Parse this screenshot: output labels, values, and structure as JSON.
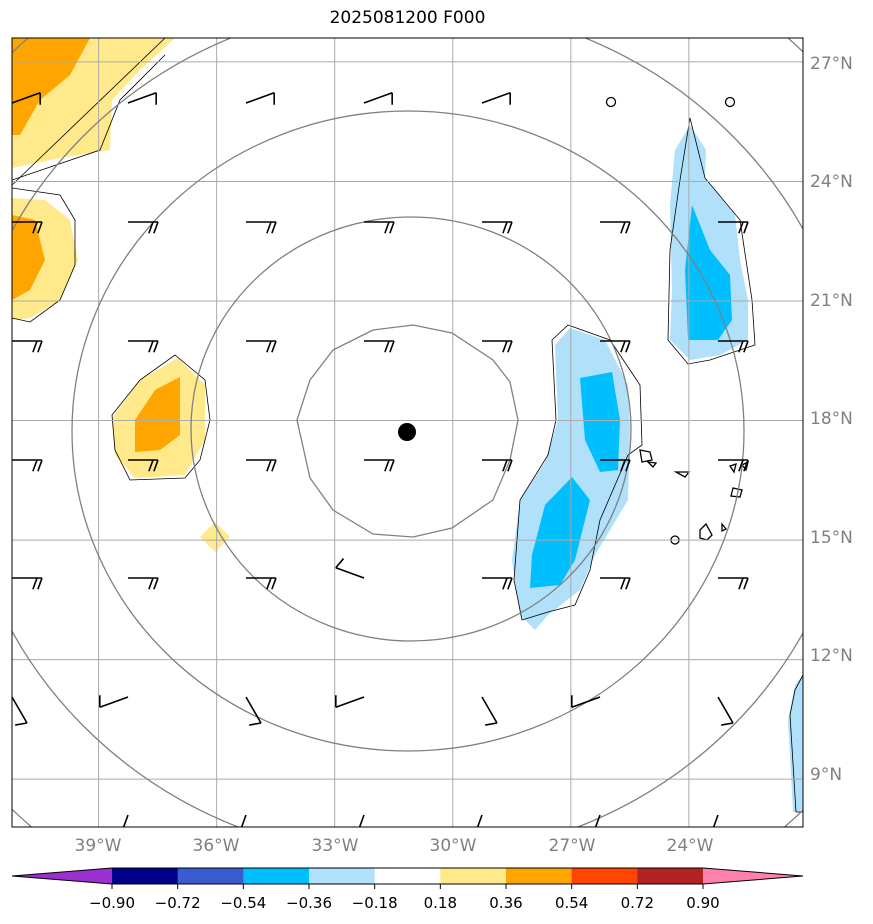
{
  "title": "2025081200 F000",
  "map": {
    "lon_labels": [
      "39°W",
      "36°W",
      "33°W",
      "30°W",
      "27°W",
      "24°W"
    ],
    "lon_values": [
      -39,
      -36,
      -33,
      -30,
      -27,
      -24
    ],
    "lat_labels": [
      "27°N",
      "24°N",
      "21°N",
      "18°N",
      "15°N",
      "12°N",
      "9°N"
    ],
    "lat_values": [
      27,
      24,
      21,
      18,
      15,
      12,
      9
    ],
    "lon_range": [
      -41.2,
      -21.1
    ],
    "lat_range": [
      7.8,
      27.6
    ],
    "center_marker": {
      "lon": -31.4,
      "lat": 17.7
    },
    "gridline_color": "#aaaaaa",
    "contour_color": "#808080",
    "label_color": "#808080"
  },
  "colorbar": {
    "ticks": [
      "−0.90",
      "−0.72",
      "−0.54",
      "−0.36",
      "−0.18",
      "0.18",
      "0.36",
      "0.54",
      "0.72",
      "0.90"
    ],
    "colors": [
      "#9b30d0",
      "#00008b",
      "#3b5bd0",
      "#00bfff",
      "#b0e0fa",
      "#ffffff",
      "#ffe98a",
      "#ffa500",
      "#ff4500",
      "#b22222",
      "#ff80aa"
    ]
  },
  "fill_colors": {
    "light_blue": "#b0e0fa",
    "blue": "#00bfff",
    "light_yellow": "#ffe98a",
    "orange": "#ffa500"
  }
}
